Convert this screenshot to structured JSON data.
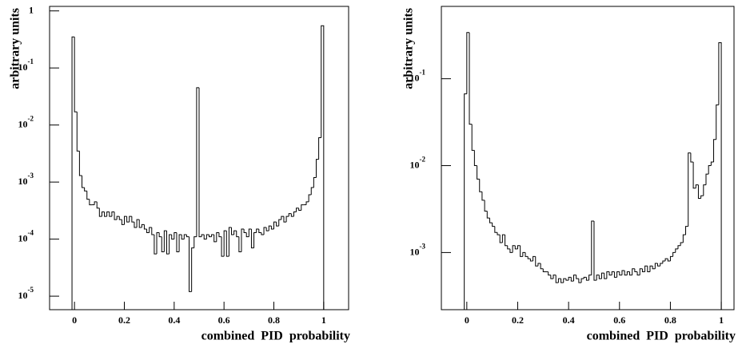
{
  "chart_data": [
    {
      "type": "histogram",
      "x_label": "combined  PID  probability",
      "y_label": "arbitrary units",
      "color": "#000000",
      "log_y": true,
      "bins": [
        -0.01,
        0,
        0.01,
        0.02,
        0.03,
        0.04,
        0.05,
        0.06,
        0.07,
        0.08,
        0.09,
        0.1,
        0.11,
        0.12,
        0.13,
        0.14,
        0.15,
        0.16,
        0.17,
        0.18,
        0.19,
        0.2,
        0.21,
        0.22,
        0.23,
        0.24,
        0.25,
        0.26,
        0.27,
        0.28,
        0.29,
        0.3,
        0.31,
        0.32,
        0.33,
        0.34,
        0.35,
        0.36,
        0.37,
        0.38,
        0.39,
        0.4,
        0.41,
        0.42,
        0.43,
        0.44,
        0.45,
        0.46,
        0.47,
        0.48,
        0.49,
        0.5,
        0.51,
        0.52,
        0.53,
        0.54,
        0.55,
        0.56,
        0.57,
        0.58,
        0.59,
        0.6,
        0.61,
        0.62,
        0.63,
        0.64,
        0.65,
        0.66,
        0.67,
        0.68,
        0.69,
        0.7,
        0.71,
        0.72,
        0.73,
        0.74,
        0.75,
        0.76,
        0.77,
        0.78,
        0.79,
        0.8,
        0.81,
        0.82,
        0.83,
        0.84,
        0.85,
        0.86,
        0.87,
        0.88,
        0.89,
        0.9,
        0.91,
        0.92,
        0.93,
        0.94,
        0.95,
        0.96,
        0.97,
        0.98,
        0.99,
        1
      ],
      "counts": [
        0.35,
        0.017,
        0.0035,
        0.0013,
        0.0008,
        0.0007,
        0.0005,
        0.0004,
        0.0004,
        0.00045,
        0.00035,
        0.00025,
        0.0003,
        0.00025,
        0.0003,
        0.00025,
        0.0003,
        0.00022,
        0.00025,
        0.00022,
        0.00018,
        0.00025,
        0.0002,
        0.00025,
        0.0002,
        0.00016,
        0.00022,
        0.00016,
        0.00018,
        0.00015,
        0.00013,
        0.00016,
        0.00012,
        5.5e-05,
        0.00013,
        0.00011,
        6e-05,
        0.00014,
        5.5e-05,
        0.00012,
        0.0001,
        0.00013,
        6e-05,
        0.00012,
        0.0001,
        0.00012,
        0.00011,
        1.2e-05,
        7e-05,
        0.00011,
        0.045,
        0.00011,
        0.00012,
        0.0001,
        0.00012,
        0.00011,
        0.00012,
        9e-05,
        0.00013,
        0.00011,
        5e-05,
        0.00014,
        5e-05,
        0.00016,
        0.00012,
        0.00014,
        0.00011,
        6e-05,
        0.00015,
        0.00013,
        0.00011,
        0.00015,
        7e-05,
        0.00013,
        0.00015,
        0.00013,
        0.00012,
        0.00016,
        0.00014,
        0.00017,
        0.00015,
        0.0002,
        0.00017,
        0.00022,
        0.00025,
        0.0002,
        0.00025,
        0.00028,
        0.00025,
        0.0003,
        0.00035,
        0.00032,
        0.0004,
        0.0004,
        0.00045,
        0.0006,
        0.0008,
        0.0012,
        0.0025,
        0.006,
        0.55
      ],
      "xlim": [
        -0.1,
        1.1
      ],
      "xticks": [
        0,
        0.2,
        0.4,
        0.6,
        0.8,
        1
      ],
      "ylim": [
        5.8e-06,
        1.2
      ],
      "yticks": [
        {
          "value": 1e-05,
          "label": "10^-5"
        },
        {
          "value": 0.0001,
          "label": "10^-4"
        },
        {
          "value": 0.001,
          "label": "10^-3"
        },
        {
          "value": 0.01,
          "label": "10^-2"
        },
        {
          "value": 0.1,
          "label": "10^-1"
        },
        1
      ]
    },
    {
      "type": "histogram",
      "x_label": "combined  PID  probability",
      "y_label": "arbitrary units",
      "color": "#000000",
      "log_y": true,
      "bins": [
        -0.01,
        0,
        0.01,
        0.02,
        0.03,
        0.04,
        0.05,
        0.06,
        0.07,
        0.08,
        0.09,
        0.1,
        0.11,
        0.12,
        0.13,
        0.14,
        0.15,
        0.16,
        0.17,
        0.18,
        0.19,
        0.2,
        0.21,
        0.22,
        0.23,
        0.24,
        0.25,
        0.26,
        0.27,
        0.28,
        0.29,
        0.3,
        0.31,
        0.32,
        0.33,
        0.34,
        0.35,
        0.36,
        0.37,
        0.38,
        0.39,
        0.4,
        0.41,
        0.42,
        0.43,
        0.44,
        0.45,
        0.46,
        0.47,
        0.48,
        0.49,
        0.5,
        0.51,
        0.52,
        0.53,
        0.54,
        0.55,
        0.56,
        0.57,
        0.58,
        0.59,
        0.6,
        0.61,
        0.62,
        0.63,
        0.64,
        0.65,
        0.66,
        0.67,
        0.68,
        0.69,
        0.7,
        0.71,
        0.72,
        0.73,
        0.74,
        0.75,
        0.76,
        0.77,
        0.78,
        0.79,
        0.8,
        0.81,
        0.82,
        0.83,
        0.84,
        0.85,
        0.86,
        0.87,
        0.88,
        0.89,
        0.9,
        0.91,
        0.92,
        0.93,
        0.94,
        0.95,
        0.96,
        0.97,
        0.98,
        0.99,
        1
      ],
      "counts": [
        0.067,
        0.34,
        0.03,
        0.015,
        0.01,
        0.007,
        0.005,
        0.004,
        0.003,
        0.0025,
        0.0022,
        0.002,
        0.0017,
        0.0016,
        0.0013,
        0.0016,
        0.0012,
        0.0011,
        0.001,
        0.0012,
        0.0011,
        0.0012,
        0.0009,
        0.001,
        0.0009,
        0.00085,
        0.0008,
        0.0009,
        0.0007,
        0.00075,
        0.00065,
        0.0006,
        0.0006,
        0.00055,
        0.0005,
        0.00055,
        0.00045,
        0.0005,
        0.00045,
        0.0005,
        0.00048,
        0.00052,
        0.00047,
        0.00055,
        0.0005,
        0.00045,
        0.0005,
        0.00052,
        0.00048,
        0.00055,
        0.0023,
        0.00048,
        0.00055,
        0.0005,
        0.00058,
        0.0005,
        0.0006,
        0.00055,
        0.0006,
        0.00052,
        0.0006,
        0.00055,
        0.00062,
        0.00055,
        0.0006,
        0.00055,
        0.00065,
        0.0006,
        0.00055,
        0.00065,
        0.0006,
        0.0007,
        0.0006,
        0.0007,
        0.00065,
        0.00075,
        0.0007,
        0.00075,
        0.0008,
        0.00085,
        0.0008,
        0.0009,
        0.001,
        0.0011,
        0.0012,
        0.0013,
        0.0016,
        0.002,
        0.014,
        0.011,
        0.0055,
        0.006,
        0.0042,
        0.0045,
        0.006,
        0.008,
        0.01,
        0.011,
        0.02,
        0.05,
        0.26
      ],
      "xlim": [
        -0.1,
        1.05
      ],
      "xticks": [
        0,
        0.2,
        0.4,
        0.6,
        0.8,
        1
      ],
      "ylim": [
        0.00022,
        0.68
      ],
      "yticks": [
        {
          "value": 0.001,
          "label": "10^-3"
        },
        {
          "value": 0.01,
          "label": "10^-2"
        },
        {
          "value": 0.1,
          "label": "10^-1"
        }
      ]
    }
  ]
}
